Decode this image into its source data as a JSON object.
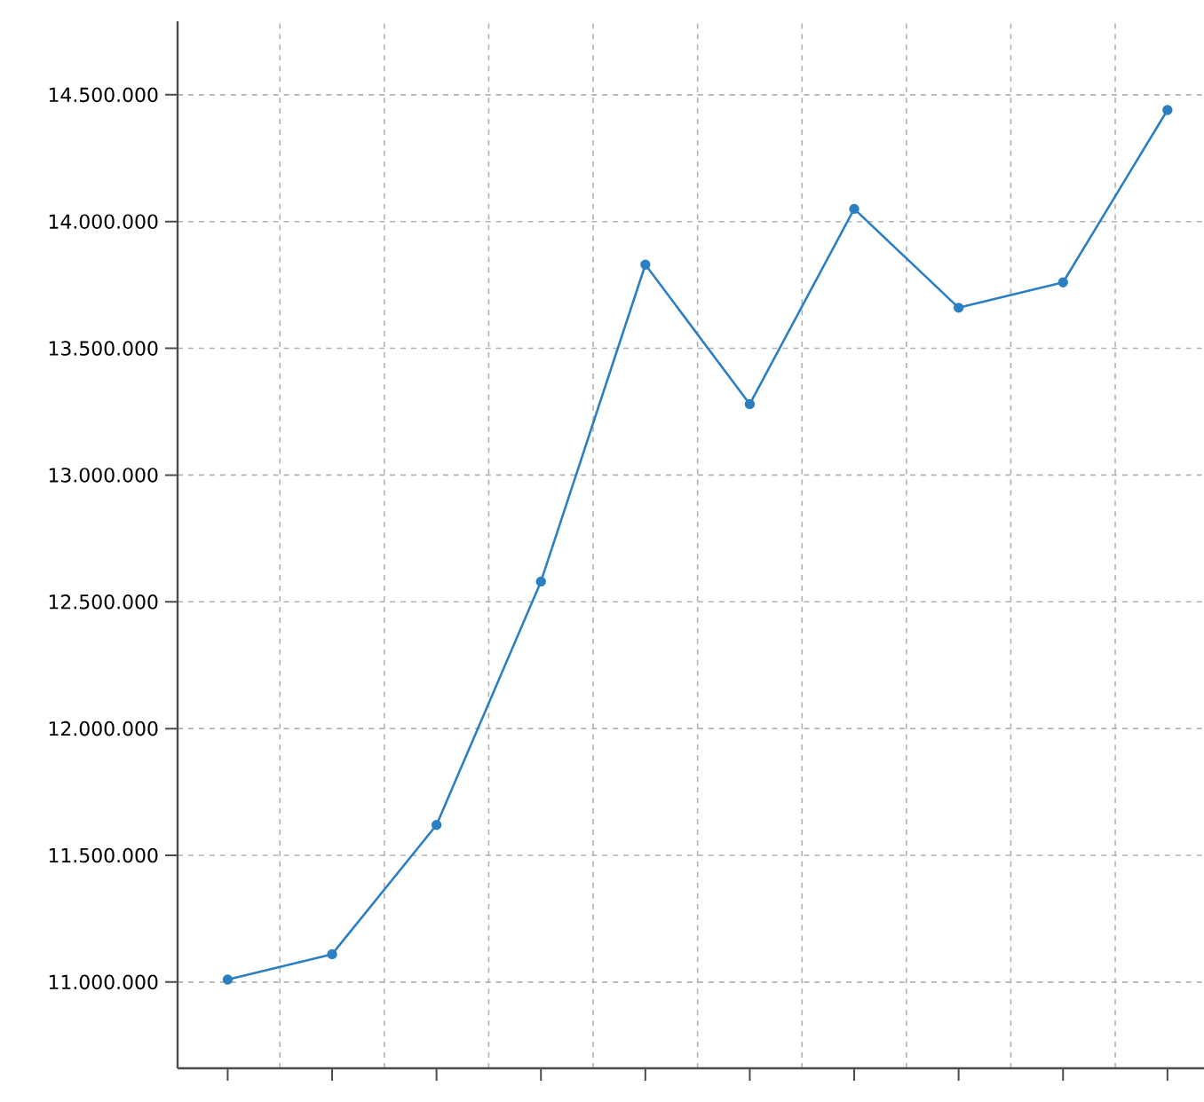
{
  "chart_data": {
    "type": "line",
    "categories": [
      null,
      null,
      null,
      null,
      null,
      null,
      null,
      null,
      null,
      null
    ],
    "series": [
      {
        "color": "#2b7fc3",
        "values": [
          11010000,
          11110000,
          11620000,
          12580000,
          13830000,
          13280000,
          14050000,
          13660000,
          13760000,
          14440000
        ]
      }
    ],
    "ylim": [
      10660000,
      14790000
    ],
    "yticks": [
      {
        "value": 11000000,
        "label": "11.000.000"
      },
      {
        "value": 11500000,
        "label": "11.500.000"
      },
      {
        "value": 12000000,
        "label": "12.000.000"
      },
      {
        "value": 12500000,
        "label": "12.500.000"
      },
      {
        "value": 13000000,
        "label": "13.000.000"
      },
      {
        "value": 13500000,
        "label": "13.500.000"
      },
      {
        "value": 14000000,
        "label": "14.000.000"
      },
      {
        "value": 14500000,
        "label": "14.500.000"
      }
    ],
    "grid": true,
    "marker": "circle",
    "line_style": "solid"
  }
}
